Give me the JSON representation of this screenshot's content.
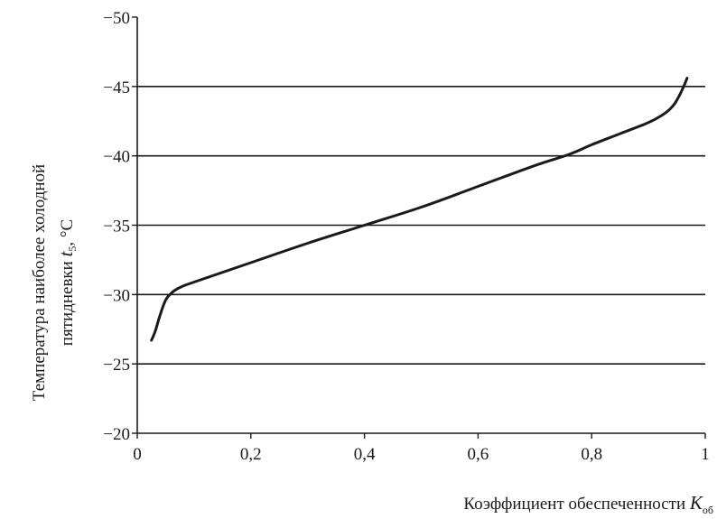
{
  "chart_data": {
    "type": "line",
    "ylabel": {
      "line1": "Температура наиболее холодной",
      "line2_prefix": "пятидневки ",
      "line2_var": "t",
      "line2_sub": "5",
      "line2_suffix": ", °C"
    },
    "xlabel": {
      "prefix": "Коэффициент обеспеченности ",
      "var": "K",
      "sub": "об"
    },
    "xlim": [
      0,
      1
    ],
    "ylim": [
      -20,
      -50
    ],
    "y_inverted": true,
    "x_ticks": [
      {
        "value": 0,
        "label": "0"
      },
      {
        "value": 0.2,
        "label": "0,2"
      },
      {
        "value": 0.4,
        "label": "0,4"
      },
      {
        "value": 0.6,
        "label": "0,6"
      },
      {
        "value": 0.8,
        "label": "0,8"
      },
      {
        "value": 1,
        "label": "1"
      }
    ],
    "y_ticks": [
      {
        "value": -50,
        "label": "−50"
      },
      {
        "value": -45,
        "label": "−45"
      },
      {
        "value": -40,
        "label": "−40"
      },
      {
        "value": -35,
        "label": "−35"
      },
      {
        "value": -30,
        "label": "−30"
      },
      {
        "value": -25,
        "label": "−25"
      },
      {
        "value": -20,
        "label": "−20"
      }
    ],
    "gridlines_y": [
      -45,
      -40,
      -35,
      -30,
      -25
    ],
    "series": [
      {
        "x": [
          0.025,
          0.032,
          0.04,
          0.05,
          0.06,
          0.07,
          0.08,
          0.1,
          0.2,
          0.3,
          0.4,
          0.5,
          0.6,
          0.7,
          0.76,
          0.8,
          0.85,
          0.9,
          0.93,
          0.945,
          0.955,
          0.962,
          0.968
        ],
        "y": [
          -26.7,
          -27.4,
          -28.5,
          -29.6,
          -30.1,
          -30.4,
          -30.6,
          -30.9,
          -32.3,
          -33.7,
          -35.0,
          -36.3,
          -37.8,
          -39.3,
          -40.1,
          -40.8,
          -41.6,
          -42.4,
          -43.1,
          -43.7,
          -44.4,
          -45.0,
          -45.6
        ]
      }
    ],
    "colors": {
      "line": "#1a1a1a",
      "grid": "#1a1a1a",
      "background": "#ffffff"
    }
  }
}
